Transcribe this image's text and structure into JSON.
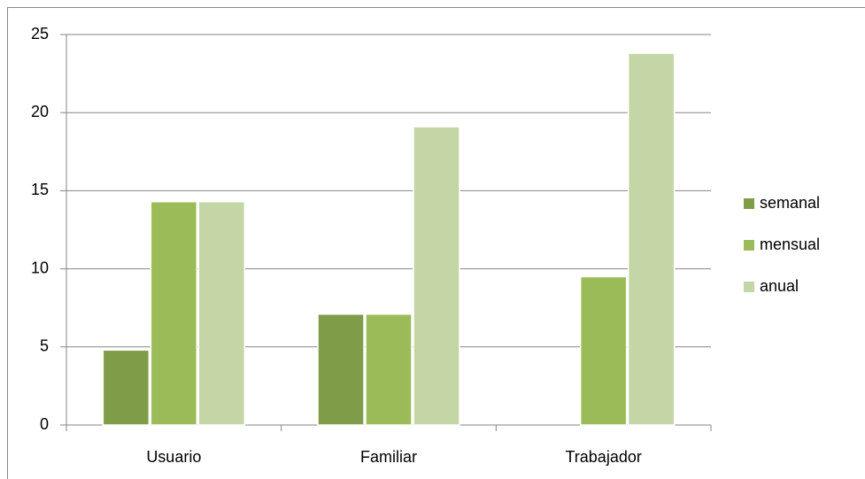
{
  "chart_data": {
    "type": "bar",
    "categories": [
      "Usuario",
      "Familiar",
      "Trabajador"
    ],
    "series": [
      {
        "name": "semanal",
        "color": "#7f9c48",
        "values": [
          4.8,
          7.1,
          0
        ]
      },
      {
        "name": "mensual",
        "color": "#9bbb59",
        "values": [
          14.3,
          7.1,
          9.5
        ]
      },
      {
        "name": "anual",
        "color": "#c4d6a6",
        "values": [
          14.3,
          19.1,
          23.8
        ]
      }
    ],
    "ylim": [
      0,
      25
    ],
    "yticks": [
      0,
      5,
      10,
      15,
      20,
      25
    ],
    "grid": true,
    "legend": "right"
  }
}
